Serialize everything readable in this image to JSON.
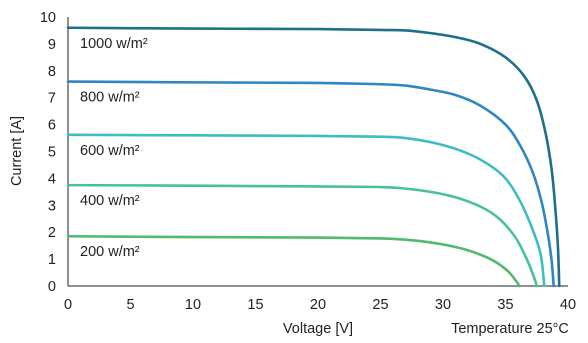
{
  "chart_data": {
    "type": "line",
    "xlabel": "Voltage [V]",
    "ylabel": "Current [A]",
    "footnote": "Temperature 25°C",
    "xlim": [
      0,
      40
    ],
    "ylim": [
      0,
      10
    ],
    "x_ticks": [
      "0",
      "5",
      "10",
      "15",
      "20",
      "25",
      "30",
      "35",
      "40"
    ],
    "y_ticks": [
      "0",
      "1",
      "2",
      "3",
      "4",
      "5",
      "6",
      "7",
      "8",
      "9",
      "10"
    ],
    "grid": false,
    "series": [
      {
        "name": "1000 w/m²",
        "color": "#1f6f8b",
        "points": [
          [
            0,
            9.6
          ],
          [
            10,
            9.57
          ],
          [
            20,
            9.55
          ],
          [
            25,
            9.52
          ],
          [
            27,
            9.5
          ],
          [
            29,
            9.4
          ],
          [
            31,
            9.25
          ],
          [
            33,
            9.0
          ],
          [
            35,
            8.5
          ],
          [
            36.5,
            7.8
          ],
          [
            37.5,
            6.9
          ],
          [
            38.2,
            5.7
          ],
          [
            38.7,
            4.3
          ],
          [
            39.0,
            2.8
          ],
          [
            39.2,
            1.4
          ],
          [
            39.3,
            0
          ]
        ]
      },
      {
        "name": "800 w/m²",
        "color": "#2f86c2",
        "points": [
          [
            0,
            7.6
          ],
          [
            10,
            7.57
          ],
          [
            20,
            7.55
          ],
          [
            25,
            7.5
          ],
          [
            27,
            7.45
          ],
          [
            29,
            7.3
          ],
          [
            31,
            7.1
          ],
          [
            33,
            6.7
          ],
          [
            35,
            6.0
          ],
          [
            36.2,
            5.2
          ],
          [
            37.2,
            4.2
          ],
          [
            37.9,
            3.1
          ],
          [
            38.4,
            1.9
          ],
          [
            38.7,
            0.9
          ],
          [
            38.85,
            0
          ]
        ]
      },
      {
        "name": "600 w/m²",
        "color": "#3fbcbf",
        "points": [
          [
            0,
            5.62
          ],
          [
            10,
            5.6
          ],
          [
            20,
            5.58
          ],
          [
            25,
            5.55
          ],
          [
            27,
            5.5
          ],
          [
            29,
            5.35
          ],
          [
            31,
            5.1
          ],
          [
            33,
            4.7
          ],
          [
            34.8,
            4.1
          ],
          [
            36.0,
            3.3
          ],
          [
            37.0,
            2.3
          ],
          [
            37.8,
            1.2
          ],
          [
            38.1,
            0
          ]
        ]
      },
      {
        "name": "400 w/m²",
        "color": "#45c29a",
        "points": [
          [
            0,
            3.75
          ],
          [
            10,
            3.73
          ],
          [
            20,
            3.7
          ],
          [
            25,
            3.68
          ],
          [
            27,
            3.62
          ],
          [
            29,
            3.5
          ],
          [
            31,
            3.3
          ],
          [
            33,
            2.95
          ],
          [
            34.5,
            2.5
          ],
          [
            35.8,
            1.8
          ],
          [
            36.7,
            1.0
          ],
          [
            37.3,
            0.3
          ],
          [
            37.5,
            0
          ]
        ]
      },
      {
        "name": "200 w/m²",
        "color": "#52b96e",
        "points": [
          [
            0,
            1.85
          ],
          [
            10,
            1.82
          ],
          [
            20,
            1.8
          ],
          [
            25,
            1.77
          ],
          [
            27,
            1.72
          ],
          [
            29,
            1.62
          ],
          [
            31,
            1.45
          ],
          [
            32.5,
            1.25
          ],
          [
            34,
            0.95
          ],
          [
            35.2,
            0.55
          ],
          [
            35.9,
            0.15
          ],
          [
            36.1,
            0
          ]
        ]
      }
    ]
  }
}
